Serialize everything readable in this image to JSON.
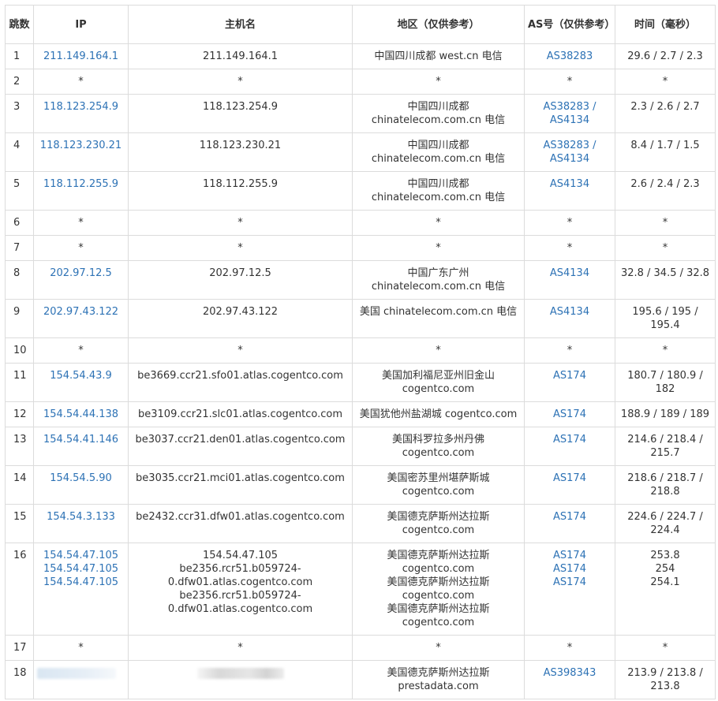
{
  "headers": {
    "hop": "跳数",
    "ip": "IP",
    "host": "主机名",
    "region": "地区（仅供参考）",
    "asn": "AS号（仅供参考）",
    "time": "时间（毫秒）"
  },
  "rows": [
    {
      "hop": "1",
      "ip": [
        "211.149.164.1"
      ],
      "host": [
        "211.149.164.1"
      ],
      "region": [
        "中国四川成都 west.cn 电信"
      ],
      "asn": [
        "AS38283"
      ],
      "time": [
        "29.6 / 2.7 / 2.3"
      ]
    },
    {
      "hop": "2",
      "ip": [
        "*"
      ],
      "host": [
        "*"
      ],
      "region": [
        "*"
      ],
      "asn": [
        "*"
      ],
      "time": [
        "*"
      ]
    },
    {
      "hop": "3",
      "ip": [
        "118.123.254.9"
      ],
      "host": [
        "118.123.254.9"
      ],
      "region": [
        "中国四川成都",
        "chinatelecom.com.cn 电信"
      ],
      "asn": [
        "AS38283 /",
        "AS4134"
      ],
      "time": [
        "2.3 / 2.6 / 2.7"
      ]
    },
    {
      "hop": "4",
      "ip": [
        "118.123.230.21"
      ],
      "host": [
        "118.123.230.21"
      ],
      "region": [
        "中国四川成都",
        "chinatelecom.com.cn 电信"
      ],
      "asn": [
        "AS38283 /",
        "AS4134"
      ],
      "time": [
        "8.4 / 1.7 / 1.5"
      ]
    },
    {
      "hop": "5",
      "ip": [
        "118.112.255.9"
      ],
      "host": [
        "118.112.255.9"
      ],
      "region": [
        "中国四川成都",
        "chinatelecom.com.cn 电信"
      ],
      "asn": [
        "AS4134"
      ],
      "time": [
        "2.6 / 2.4 / 2.3"
      ]
    },
    {
      "hop": "6",
      "ip": [
        "*"
      ],
      "host": [
        "*"
      ],
      "region": [
        "*"
      ],
      "asn": [
        "*"
      ],
      "time": [
        "*"
      ]
    },
    {
      "hop": "7",
      "ip": [
        "*"
      ],
      "host": [
        "*"
      ],
      "region": [
        "*"
      ],
      "asn": [
        "*"
      ],
      "time": [
        "*"
      ]
    },
    {
      "hop": "8",
      "ip": [
        "202.97.12.5"
      ],
      "host": [
        "202.97.12.5"
      ],
      "region": [
        "中国广东广州",
        "chinatelecom.com.cn 电信"
      ],
      "asn": [
        "AS4134"
      ],
      "time": [
        "32.8 / 34.5 / 32.8"
      ]
    },
    {
      "hop": "9",
      "ip": [
        "202.97.43.122"
      ],
      "host": [
        "202.97.43.122"
      ],
      "region": [
        "美国 chinatelecom.com.cn 电信"
      ],
      "asn": [
        "AS4134"
      ],
      "time": [
        "195.6 / 195 /",
        "195.4"
      ]
    },
    {
      "hop": "10",
      "ip": [
        "*"
      ],
      "host": [
        "*"
      ],
      "region": [
        "*"
      ],
      "asn": [
        "*"
      ],
      "time": [
        "*"
      ]
    },
    {
      "hop": "11",
      "ip": [
        "154.54.43.9"
      ],
      "host": [
        "be3669.ccr21.sfo01.atlas.cogentco.com"
      ],
      "region": [
        "美国加利福尼亚州旧金山",
        "cogentco.com"
      ],
      "asn": [
        "AS174"
      ],
      "time": [
        "180.7 / 180.9 /",
        "182"
      ]
    },
    {
      "hop": "12",
      "ip": [
        "154.54.44.138"
      ],
      "host": [
        "be3109.ccr21.slc01.atlas.cogentco.com"
      ],
      "region": [
        "美国犹他州盐湖城 cogentco.com"
      ],
      "asn": [
        "AS174"
      ],
      "time": [
        "188.9 / 189 / 189"
      ]
    },
    {
      "hop": "13",
      "ip": [
        "154.54.41.146"
      ],
      "host": [
        "be3037.ccr21.den01.atlas.cogentco.com"
      ],
      "region": [
        "美国科罗拉多州丹佛",
        "cogentco.com"
      ],
      "asn": [
        "AS174"
      ],
      "time": [
        "214.6 / 218.4 /",
        "215.7"
      ]
    },
    {
      "hop": "14",
      "ip": [
        "154.54.5.90"
      ],
      "host": [
        "be3035.ccr21.mci01.atlas.cogentco.com"
      ],
      "region": [
        "美国密苏里州堪萨斯城",
        "cogentco.com"
      ],
      "asn": [
        "AS174"
      ],
      "time": [
        "218.6 / 218.7 /",
        "218.8"
      ]
    },
    {
      "hop": "15",
      "ip": [
        "154.54.3.133"
      ],
      "host": [
        "be2432.ccr31.dfw01.atlas.cogentco.com"
      ],
      "region": [
        "美国德克萨斯州达拉斯",
        "cogentco.com"
      ],
      "asn": [
        "AS174"
      ],
      "time": [
        "224.6 / 224.7 /",
        "224.4"
      ]
    },
    {
      "hop": "16",
      "ip": [
        "154.54.47.105",
        "154.54.47.105",
        "154.54.47.105"
      ],
      "host": [
        "154.54.47.105",
        "be2356.rcr51.b059724-",
        "0.dfw01.atlas.cogentco.com",
        "be2356.rcr51.b059724-",
        "0.dfw01.atlas.cogentco.com"
      ],
      "region": [
        "美国德克萨斯州达拉斯",
        "cogentco.com",
        "美国德克萨斯州达拉斯",
        "cogentco.com",
        "美国德克萨斯州达拉斯",
        "cogentco.com"
      ],
      "asn": [
        "AS174",
        "AS174",
        "AS174"
      ],
      "time": [
        "253.8",
        "254",
        "254.1"
      ]
    },
    {
      "hop": "17",
      "ip": [
        "*"
      ],
      "host": [
        "*"
      ],
      "region": [
        "*"
      ],
      "asn": [
        "*"
      ],
      "time": [
        "*"
      ]
    },
    {
      "hop": "18",
      "ip": [],
      "host": [],
      "region": [
        "美国德克萨斯州达拉斯",
        "prestadata.com"
      ],
      "asn": [
        "AS398343"
      ],
      "time": [
        "213.9 / 213.8 /",
        "213.8"
      ],
      "redacted": true
    }
  ]
}
